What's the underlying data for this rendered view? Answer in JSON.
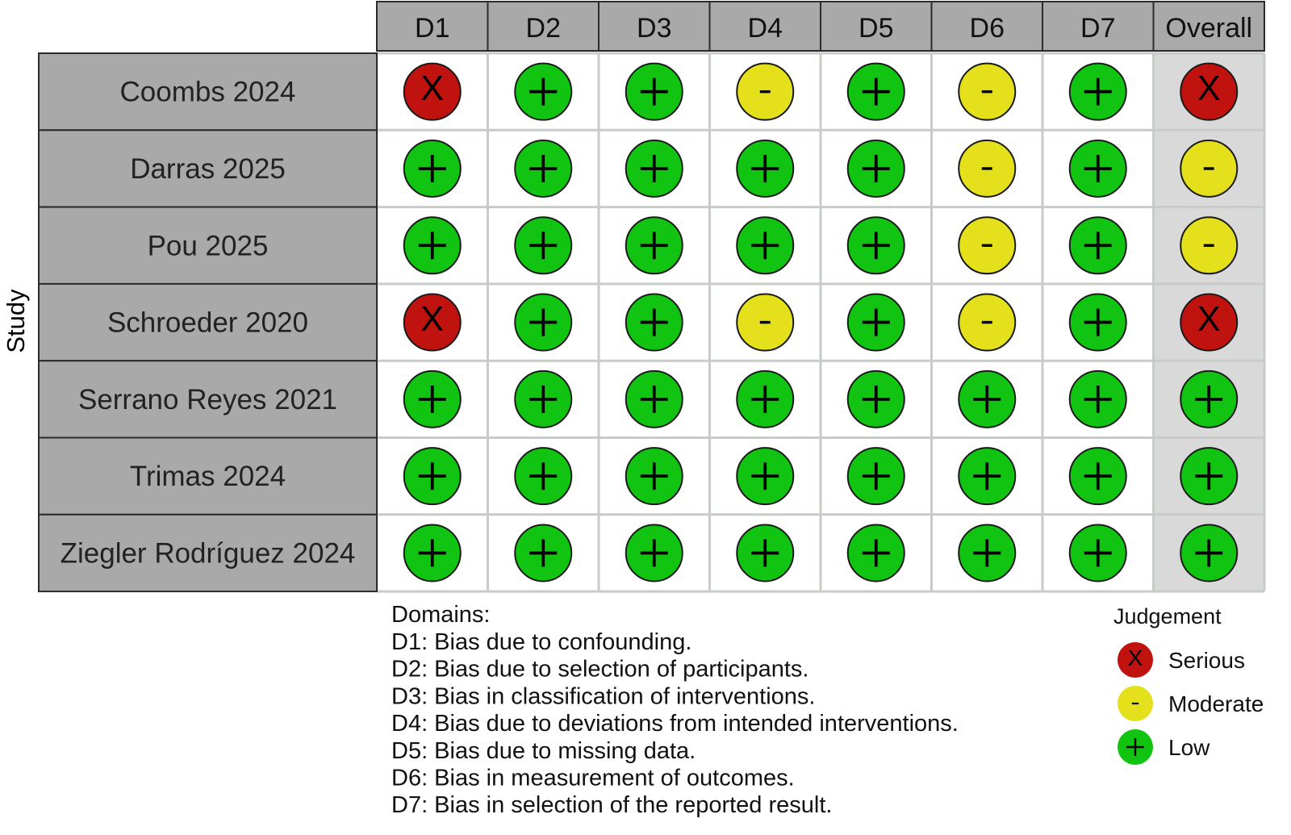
{
  "chart_data": {
    "type": "table",
    "y_axis_label": "Study",
    "columns": [
      "D1",
      "D2",
      "D3",
      "D4",
      "D5",
      "D6",
      "D7",
      "Overall"
    ],
    "studies": [
      "Coombs 2024",
      "Darras 2025",
      "Pou 2025",
      "Schroeder 2020",
      "Serrano Reyes 2021",
      "Trimas 2024",
      "Ziegler Rodríguez 2024"
    ],
    "judgements": [
      [
        "Serious",
        "Low",
        "Low",
        "Moderate",
        "Low",
        "Moderate",
        "Low",
        "Serious"
      ],
      [
        "Low",
        "Low",
        "Low",
        "Low",
        "Low",
        "Moderate",
        "Low",
        "Moderate"
      ],
      [
        "Low",
        "Low",
        "Low",
        "Low",
        "Low",
        "Moderate",
        "Low",
        "Moderate"
      ],
      [
        "Serious",
        "Low",
        "Low",
        "Moderate",
        "Low",
        "Moderate",
        "Low",
        "Serious"
      ],
      [
        "Low",
        "Low",
        "Low",
        "Low",
        "Low",
        "Low",
        "Low",
        "Low"
      ],
      [
        "Low",
        "Low",
        "Low",
        "Low",
        "Low",
        "Low",
        "Low",
        "Low"
      ],
      [
        "Low",
        "Low",
        "Low",
        "Low",
        "Low",
        "Low",
        "Low",
        "Low"
      ]
    ],
    "domains_title": "Domains:",
    "domains": [
      "D1: Bias due to confounding.",
      "D2: Bias due to selection of participants.",
      "D3: Bias in classification of interventions.",
      "D4: Bias due to deviations from intended interventions.",
      "D5: Bias due to missing data.",
      "D6: Bias in measurement of outcomes.",
      "D7: Bias in selection of the reported result."
    ],
    "legend_title": "Judgement",
    "legend": [
      {
        "label": "Serious",
        "symbol": "X",
        "color": "#c0120f"
      },
      {
        "label": "Moderate",
        "symbol": "-",
        "color": "#e4e01c"
      },
      {
        "label": "Low",
        "symbol": "+",
        "color": "#12c412"
      }
    ],
    "colors": {
      "header_fill": "#a9a9a9",
      "overall_column_fill": "#d9d9d9",
      "cell_fill": "#ffffff",
      "grid": "#c8ccc8"
    }
  }
}
